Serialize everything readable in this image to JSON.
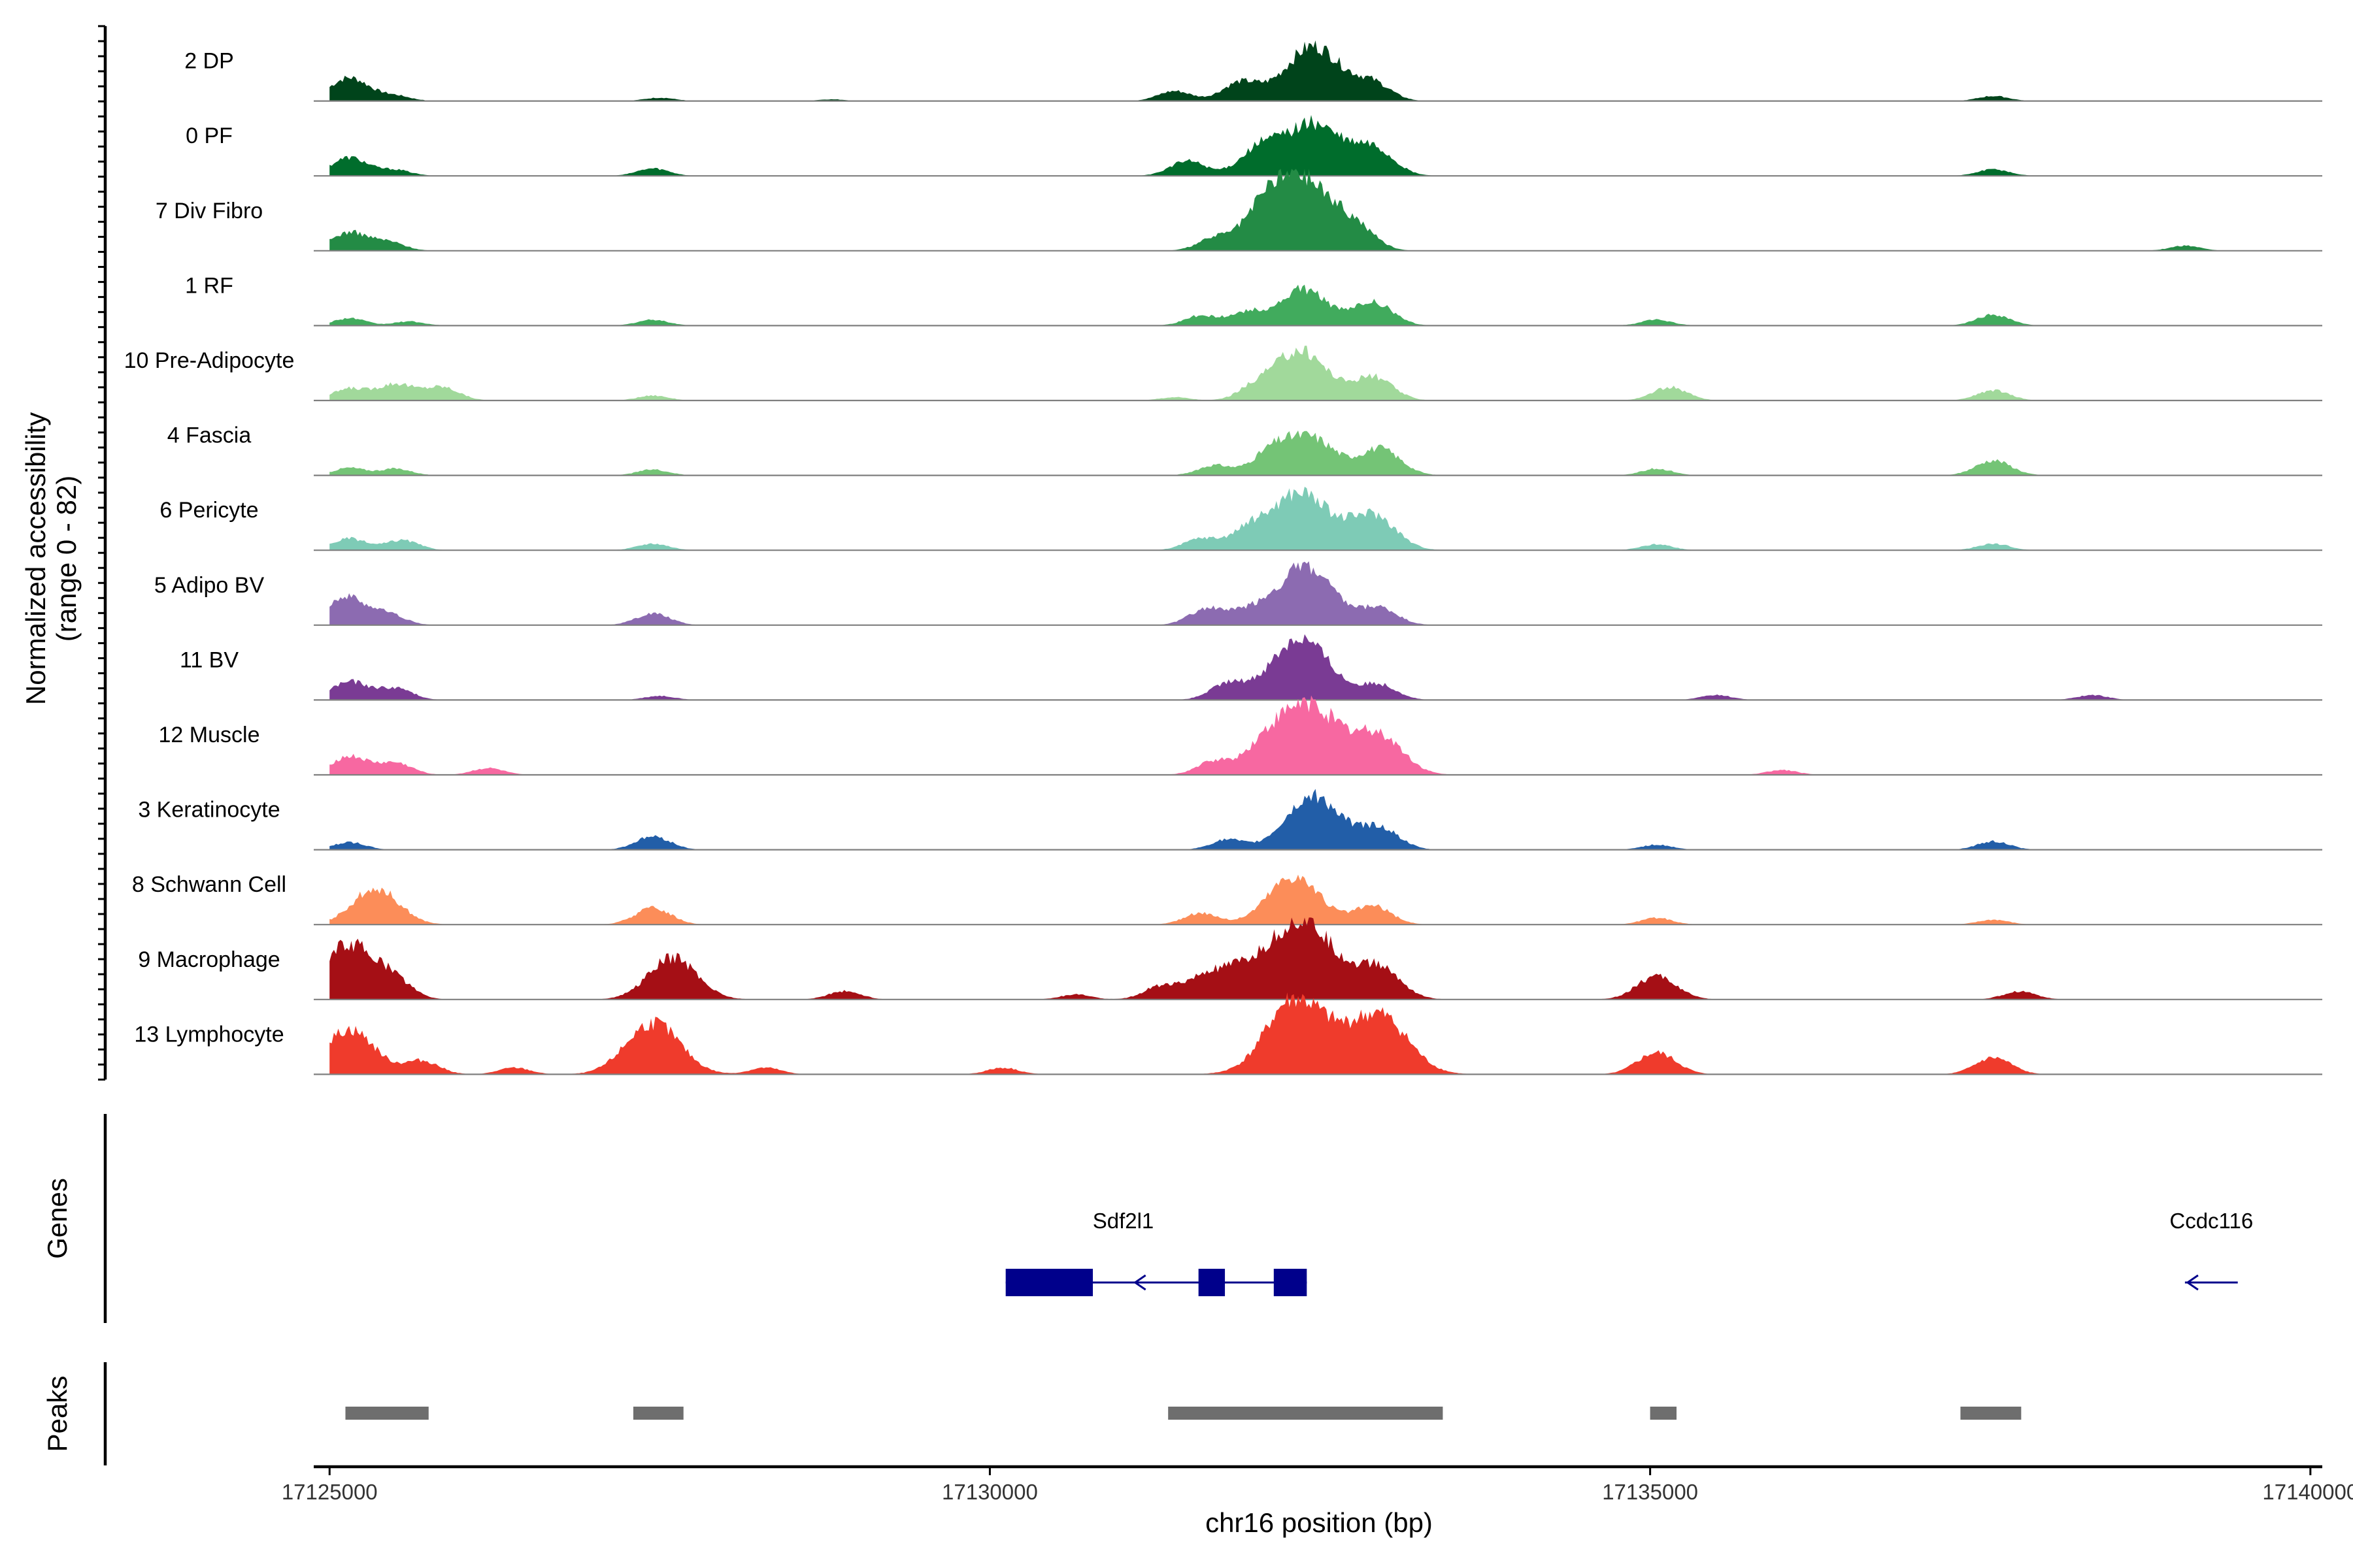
{
  "chart_data": {
    "type": "area",
    "ylabel": "Normalized accessibility",
    "ylabel_range": "(range 0 - 82)",
    "ylim": [
      0,
      82
    ],
    "xlabel": "chr16 position (bp)",
    "xlim": [
      17124880,
      17140090
    ],
    "xticks": [
      {
        "value": 17125000,
        "label": "17125000"
      },
      {
        "value": 17130000,
        "label": "17130000"
      },
      {
        "value": 17135000,
        "label": "17135000"
      },
      {
        "value": 17140000,
        "label": "17140000"
      }
    ],
    "tracks": [
      {
        "name": "2 DP",
        "color": "#00441b",
        "peaks": [
          [
            17125150,
            28
          ],
          [
            17125500,
            6
          ],
          [
            17127500,
            4
          ],
          [
            17128800,
            2
          ],
          [
            17131400,
            12
          ],
          [
            17131900,
            22
          ],
          [
            17132450,
            66
          ],
          [
            17132900,
            20
          ],
          [
            17137600,
            6
          ]
        ]
      },
      {
        "name": "0 PF",
        "color": "#006d2c",
        "peaks": [
          [
            17125150,
            22
          ],
          [
            17125500,
            7
          ],
          [
            17127450,
            9
          ],
          [
            17131500,
            18
          ],
          [
            17132050,
            32
          ],
          [
            17132450,
            62
          ],
          [
            17132900,
            32
          ],
          [
            17137600,
            8
          ]
        ]
      },
      {
        "name": "7 Div Fibro",
        "color": "#238b45",
        "peaks": [
          [
            17125150,
            22
          ],
          [
            17125450,
            10
          ],
          [
            17131700,
            14
          ],
          [
            17132100,
            42
          ],
          [
            17132400,
            80
          ],
          [
            17132800,
            18
          ],
          [
            17139050,
            6
          ]
        ]
      },
      {
        "name": "1 RF",
        "color": "#41ab5d",
        "peaks": [
          [
            17125150,
            9
          ],
          [
            17125600,
            5
          ],
          [
            17127450,
            7
          ],
          [
            17131600,
            12
          ],
          [
            17131950,
            16
          ],
          [
            17132380,
            44
          ],
          [
            17132900,
            28
          ],
          [
            17135050,
            7
          ],
          [
            17137600,
            13
          ]
        ]
      },
      {
        "name": "10 Pre-Adipocyte",
        "color": "#a1d99b",
        "peaks": [
          [
            17125150,
            14
          ],
          [
            17125500,
            20
          ],
          [
            17125850,
            16
          ],
          [
            17127450,
            6
          ],
          [
            17131400,
            4
          ],
          [
            17132000,
            12
          ],
          [
            17132350,
            60
          ],
          [
            17132900,
            28
          ],
          [
            17135150,
            16
          ],
          [
            17137600,
            12
          ]
        ]
      },
      {
        "name": "4 Fascia",
        "color": "#74c476",
        "peaks": [
          [
            17125150,
            9
          ],
          [
            17125500,
            8
          ],
          [
            17127450,
            7
          ],
          [
            17131700,
            12
          ],
          [
            17132150,
            30
          ],
          [
            17132450,
            42
          ],
          [
            17132950,
            32
          ],
          [
            17135050,
            8
          ],
          [
            17137600,
            18
          ]
        ]
      },
      {
        "name": "6 Pericyte",
        "color": "#7ecbb6",
        "peaks": [
          [
            17125150,
            14
          ],
          [
            17125550,
            12
          ],
          [
            17127450,
            8
          ],
          [
            17131600,
            14
          ],
          [
            17131950,
            20
          ],
          [
            17132350,
            70
          ],
          [
            17132900,
            42
          ],
          [
            17135050,
            7
          ],
          [
            17137600,
            8
          ]
        ]
      },
      {
        "name": "5 Adipo BV",
        "color": "#8c6bb1",
        "peaks": [
          [
            17125120,
            34
          ],
          [
            17125450,
            12
          ],
          [
            17127450,
            14
          ],
          [
            17131650,
            20
          ],
          [
            17131950,
            12
          ],
          [
            17132380,
            70
          ],
          [
            17132950,
            20
          ]
        ]
      },
      {
        "name": "11 BV",
        "color": "#7a3b94",
        "peaks": [
          [
            17125150,
            22
          ],
          [
            17125500,
            14
          ],
          [
            17127500,
            5
          ],
          [
            17131800,
            18
          ],
          [
            17132350,
            74
          ],
          [
            17132950,
            18
          ],
          [
            17135500,
            6
          ],
          [
            17138350,
            6
          ]
        ]
      },
      {
        "name": "12 Muscle",
        "color": "#f768a1",
        "peaks": [
          [
            17125150,
            22
          ],
          [
            17125500,
            14
          ],
          [
            17126200,
            8
          ],
          [
            17131700,
            16
          ],
          [
            17132050,
            18
          ],
          [
            17132400,
            86
          ],
          [
            17132950,
            46
          ],
          [
            17136000,
            6
          ]
        ]
      },
      {
        "name": "3 Keratinocyte",
        "color": "#225ea8",
        "peaks": [
          [
            17125150,
            9
          ],
          [
            17127450,
            16
          ],
          [
            17131800,
            12
          ],
          [
            17132450,
            64
          ],
          [
            17132950,
            26
          ],
          [
            17135050,
            6
          ],
          [
            17137600,
            10
          ]
        ]
      },
      {
        "name": "8 Schwann Cell",
        "color": "#fc8d59",
        "peaks": [
          [
            17125350,
            44
          ],
          [
            17127450,
            20
          ],
          [
            17131600,
            14
          ],
          [
            17132300,
            58
          ],
          [
            17132900,
            22
          ],
          [
            17135050,
            8
          ],
          [
            17137600,
            6
          ]
        ]
      },
      {
        "name": "9 Macrophage",
        "color": "#a50f15",
        "peaks": [
          [
            17125150,
            66
          ],
          [
            17125500,
            16
          ],
          [
            17127600,
            50
          ],
          [
            17128900,
            10
          ],
          [
            17130650,
            6
          ],
          [
            17131300,
            16
          ],
          [
            17131650,
            28
          ],
          [
            17131900,
            18
          ],
          [
            17132350,
            96
          ],
          [
            17132950,
            36
          ],
          [
            17135050,
            28
          ],
          [
            17137800,
            10
          ]
        ]
      },
      {
        "name": "13 Lymphocyte",
        "color": "#ef3b2c",
        "peaks": [
          [
            17125150,
            54
          ],
          [
            17125700,
            16
          ],
          [
            17126400,
            8
          ],
          [
            17127450,
            62
          ],
          [
            17128300,
            8
          ],
          [
            17130100,
            8
          ],
          [
            17132200,
            12
          ],
          [
            17132350,
            84
          ],
          [
            17132950,
            70
          ],
          [
            17135050,
            26
          ],
          [
            17137600,
            20
          ]
        ]
      }
    ],
    "genes": [
      {
        "name": "Sdf2l1",
        "start": 17130120,
        "end": 17132400,
        "strand": "-",
        "exons": [
          [
            17130120,
            17130780
          ],
          [
            17131580,
            17131780
          ],
          [
            17132150,
            17132400
          ]
        ]
      },
      {
        "name": "Ccdc116",
        "start": 17139050,
        "end": 17139450,
        "strand": "-",
        "exons": []
      }
    ],
    "peak_regions": [
      [
        17125120,
        17125750
      ],
      [
        17127300,
        17127680
      ],
      [
        17131350,
        17133430
      ],
      [
        17135000,
        17135200
      ],
      [
        17137350,
        17137810
      ]
    ],
    "panel_titles": {
      "genes": "Genes",
      "peaks": "Peaks"
    },
    "grid": false,
    "legend": "none"
  }
}
